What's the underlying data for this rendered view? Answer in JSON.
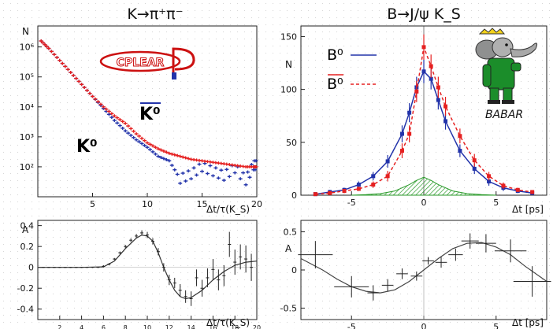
{
  "chart_data": [
    {
      "id": "kaon-lifetime",
      "type": "scatter",
      "title": "K→π⁺π⁻",
      "xlabel": "Δt/τ(K_S)",
      "ylabel": "N",
      "log_y": true,
      "xlim": [
        0,
        20
      ],
      "ylim": [
        1,
        6.7
      ],
      "x_ticks": [
        5,
        10,
        15,
        20
      ],
      "y_ticks": [
        {
          "label": "10²",
          "value": 2
        },
        {
          "label": "10³",
          "value": 3
        },
        {
          "label": "10⁴",
          "value": 4
        },
        {
          "label": "10⁵",
          "value": 5
        },
        {
          "label": "10⁶",
          "value": 6
        }
      ],
      "logo_text": "CPLEAR",
      "series": [
        {
          "name": "K⁰bar",
          "label": "K⁰",
          "overline": true,
          "color": "#2233aa",
          "x": [
            0.3,
            1,
            2,
            3,
            4,
            5,
            6,
            7,
            8,
            9,
            10,
            11,
            12,
            13,
            14,
            15,
            16,
            17,
            18,
            19,
            19.7
          ],
          "y": [
            6.2,
            5.95,
            5.55,
            5.15,
            4.75,
            4.35,
            3.95,
            3.55,
            3.2,
            2.9,
            2.65,
            2.35,
            2.2,
            1.6,
            1.75,
            2.0,
            1.85,
            1.7,
            1.95,
            1.55,
            2.05
          ]
        },
        {
          "name": "K⁰",
          "label": "K⁰",
          "overline": false,
          "color": "#e52020",
          "x": [
            0.3,
            1,
            2,
            3,
            4,
            5,
            6,
            7,
            8,
            9,
            10,
            11,
            12,
            13,
            14,
            15,
            16,
            17,
            18,
            19,
            19.7
          ],
          "y": [
            6.2,
            5.95,
            5.55,
            5.15,
            4.75,
            4.35,
            4.0,
            3.7,
            3.45,
            3.1,
            2.8,
            2.6,
            2.45,
            2.35,
            2.25,
            2.2,
            2.15,
            2.1,
            2.05,
            2.0,
            2.0
          ]
        }
      ]
    },
    {
      "id": "kaon-asymmetry",
      "type": "scatter",
      "xlabel": "Δt/τ(K_S)",
      "ylabel": "A",
      "xlim": [
        0,
        20
      ],
      "ylim": [
        -0.5,
        0.45
      ],
      "x_ticks": [
        2,
        4,
        6,
        8,
        10,
        12,
        14,
        16,
        18,
        20
      ],
      "y_ticks": [
        0.4,
        0.2,
        0,
        -0.2,
        -0.4
      ],
      "series": [
        {
          "name": "data",
          "x": [
            0.5,
            1,
            1.5,
            2,
            2.5,
            3,
            3.5,
            4,
            4.5,
            5,
            5.5,
            6,
            6.5,
            7,
            7.5,
            8,
            8.5,
            9,
            9.5,
            10,
            10.5,
            11,
            11.5,
            12,
            12.5,
            13,
            13.5,
            14,
            14.5,
            15,
            15.5,
            16,
            16.5,
            17,
            17.5,
            18,
            18.5,
            19,
            19.5
          ],
          "y": [
            0,
            0,
            0,
            0,
            0,
            0,
            0,
            0,
            0,
            0,
            0,
            0.01,
            0.03,
            0.08,
            0.14,
            0.2,
            0.26,
            0.3,
            0.33,
            0.31,
            0.25,
            0.15,
            0.0,
            -0.12,
            -0.15,
            -0.22,
            -0.28,
            -0.3,
            -0.1,
            -0.2,
            -0.1,
            -0.02,
            -0.12,
            -0.08,
            0.22,
            0.05,
            0.1,
            0.08,
            0.0
          ],
          "yerr": [
            0.005,
            0.005,
            0.005,
            0.005,
            0.005,
            0.005,
            0.005,
            0.005,
            0.005,
            0.005,
            0.005,
            0.01,
            0.01,
            0.01,
            0.012,
            0.015,
            0.018,
            0.02,
            0.025,
            0.03,
            0.03,
            0.035,
            0.04,
            0.05,
            0.05,
            0.06,
            0.06,
            0.07,
            0.08,
            0.08,
            0.09,
            0.1,
            0.1,
            0.1,
            0.12,
            0.12,
            0.12,
            0.13,
            0.13
          ]
        },
        {
          "name": "fit",
          "line": true,
          "x": [
            0,
            2,
            4,
            6,
            7,
            8,
            9,
            9.5,
            10,
            10.5,
            11,
            11.5,
            12,
            12.5,
            13,
            13.5,
            14,
            15,
            16,
            17,
            18,
            19,
            20
          ],
          "y": [
            0,
            0,
            0,
            0.005,
            0.06,
            0.18,
            0.28,
            0.31,
            0.3,
            0.25,
            0.14,
            0.0,
            -0.12,
            -0.22,
            -0.28,
            -0.3,
            -0.29,
            -0.22,
            -0.12,
            -0.04,
            0.02,
            0.05,
            0.06
          ]
        }
      ]
    },
    {
      "id": "b-decay",
      "type": "line",
      "title": "B→J/ψ K_S",
      "xlabel": "Δt [ps]",
      "ylabel": "N",
      "xlim": [
        -8.5,
        8.5
      ],
      "ylim": [
        0,
        160
      ],
      "x_ticks": [
        -5,
        0,
        5
      ],
      "y_ticks": [
        0,
        50,
        100,
        150
      ],
      "logo_text": "BABAR",
      "series": [
        {
          "name": "B⁰",
          "label": "B⁰",
          "overline": false,
          "color": "#2233aa",
          "dash": false,
          "x": [
            -7.5,
            -6.5,
            -5.5,
            -4.5,
            -3.5,
            -2.5,
            -1.5,
            -1,
            -0.5,
            0,
            0.5,
            1,
            1.5,
            2.5,
            3.5,
            4.5,
            5.5,
            6.5,
            7.5
          ],
          "y": [
            1,
            3,
            5,
            10,
            18,
            32,
            58,
            78,
            102,
            117,
            110,
            90,
            70,
            42,
            25,
            13,
            7,
            4,
            2
          ],
          "yerr": [
            1,
            2,
            2,
            3,
            4,
            6,
            8,
            9,
            10,
            11,
            10,
            9,
            8,
            6,
            5,
            4,
            3,
            2,
            1
          ]
        },
        {
          "name": "B⁰bar",
          "label": "B⁰",
          "overline": true,
          "color": "#e52020",
          "dash": true,
          "x": [
            -7.5,
            -6.5,
            -5.5,
            -4.5,
            -3.5,
            -2.5,
            -1.5,
            -1,
            -0.5,
            0,
            0.5,
            1,
            1.5,
            2.5,
            3.5,
            4.5,
            5.5,
            6.5,
            7.5
          ],
          "y": [
            1,
            2,
            4,
            6,
            10,
            18,
            42,
            58,
            98,
            140,
            122,
            102,
            84,
            56,
            33,
            18,
            9,
            5,
            3
          ],
          "yerr": [
            1,
            1,
            2,
            2,
            3,
            5,
            7,
            8,
            10,
            12,
            11,
            10,
            9,
            7,
            6,
            4,
            3,
            2,
            1
          ]
        },
        {
          "name": "background",
          "fill": true,
          "color": "#33aa33",
          "x": [
            -5,
            -4,
            -3,
            -2,
            -1,
            -0.5,
            0,
            0.5,
            1,
            2,
            3,
            4,
            5
          ],
          "y": [
            0,
            0.5,
            1.5,
            4,
            10,
            14,
            17,
            14,
            10,
            4,
            1.5,
            0.5,
            0
          ]
        }
      ]
    },
    {
      "id": "b-asymmetry",
      "type": "scatter",
      "xlabel": "Δt [ps]",
      "ylabel": "A",
      "xlim": [
        -8.5,
        8.5
      ],
      "ylim": [
        -0.65,
        0.65
      ],
      "x_ticks": [
        -5,
        0,
        5
      ],
      "y_ticks": [
        0.5,
        0,
        -0.5
      ],
      "series": [
        {
          "name": "data",
          "x": [
            -7.5,
            -5,
            -3.5,
            -2.5,
            -1.5,
            -0.5,
            0.3,
            1.2,
            2.2,
            3.2,
            4.3,
            6,
            7.5
          ],
          "y": [
            0.2,
            -0.22,
            -0.3,
            -0.2,
            -0.05,
            -0.08,
            0.12,
            0.1,
            0.2,
            0.38,
            0.35,
            0.25,
            -0.15
          ],
          "xerr": [
            1.2,
            1.2,
            0.4,
            0.4,
            0.4,
            0.4,
            0.4,
            0.4,
            0.5,
            0.6,
            0.7,
            1.1,
            1.3
          ],
          "yerr": [
            0.18,
            0.14,
            0.1,
            0.08,
            0.07,
            0.06,
            0.05,
            0.07,
            0.08,
            0.1,
            0.12,
            0.15,
            0.2
          ]
        },
        {
          "name": "fit",
          "line": true,
          "x": [
            -8.5,
            -7,
            -6,
            -5,
            -4,
            -3,
            -2,
            -1,
            0,
            1,
            2,
            3,
            4,
            5,
            6,
            7,
            8.5
          ],
          "y": [
            0.15,
            0.0,
            -0.12,
            -0.22,
            -0.28,
            -0.3,
            -0.26,
            -0.15,
            0.0,
            0.15,
            0.28,
            0.35,
            0.36,
            0.3,
            0.2,
            0.05,
            -0.15
          ]
        }
      ]
    }
  ]
}
